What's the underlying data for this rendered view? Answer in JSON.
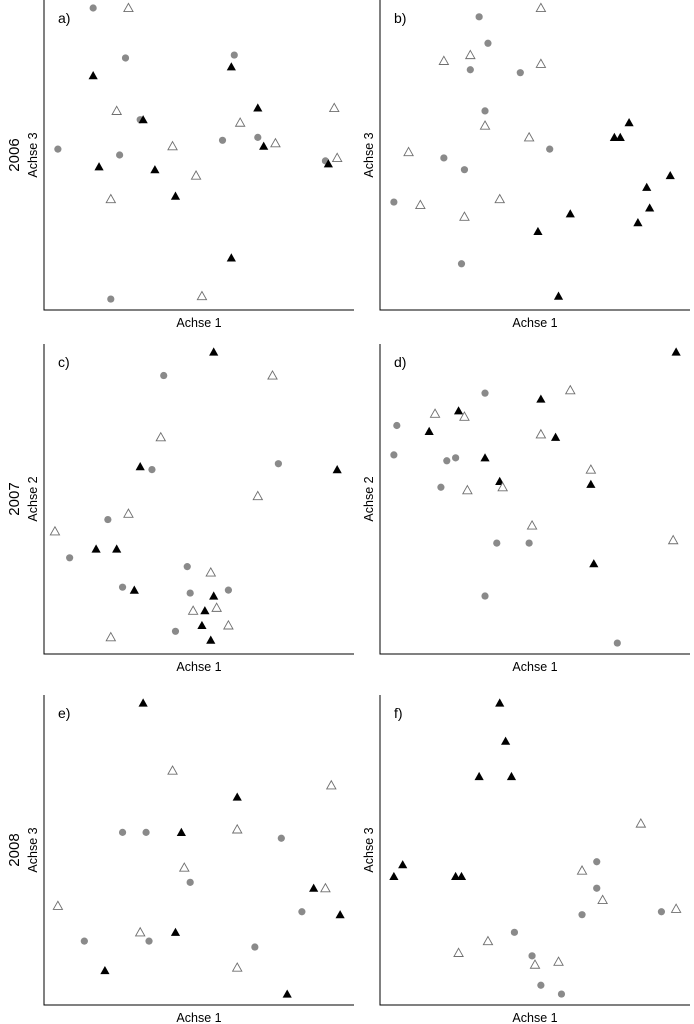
{
  "rows": [
    {
      "label": "2006"
    },
    {
      "label": "2007"
    },
    {
      "label": "2008"
    }
  ],
  "chart_data": [
    {
      "type": "scatter",
      "panel": "a)",
      "xlabel": "Achse 1",
      "ylabel": "Achse 3",
      "xlim": [
        0,
        100
      ],
      "ylim": [
        0,
        100
      ],
      "grid": false,
      "legend": "none",
      "series": [
        {
          "marker": "circle",
          "color": "#8a8a8a",
          "points": [
            [
              2,
              52
            ],
            [
              14,
              100
            ],
            [
              25,
              83
            ],
            [
              30,
              62
            ],
            [
              23,
              50
            ],
            [
              62,
              84
            ],
            [
              58,
              55
            ],
            [
              70,
              56
            ],
            [
              93,
              48
            ],
            [
              20,
              1
            ]
          ]
        },
        {
          "marker": "triangle-filled",
          "color": "#000000",
          "points": [
            [
              14,
              77
            ],
            [
              16,
              46
            ],
            [
              31,
              62
            ],
            [
              35,
              45
            ],
            [
              42,
              36
            ],
            [
              61,
              80
            ],
            [
              61,
              15
            ],
            [
              70,
              66
            ],
            [
              72,
              53
            ],
            [
              94,
              47
            ]
          ]
        },
        {
          "marker": "triangle-open",
          "color": "#6e6e6e",
          "points": [
            [
              26,
              100
            ],
            [
              22,
              65
            ],
            [
              20,
              35
            ],
            [
              41,
              53
            ],
            [
              49,
              43
            ],
            [
              51,
              2
            ],
            [
              64,
              61
            ],
            [
              76,
              54
            ],
            [
              96,
              66
            ],
            [
              97,
              49
            ]
          ]
        }
      ]
    },
    {
      "type": "scatter",
      "panel": "b)",
      "xlabel": "Achse 1",
      "ylabel": "Achse 3",
      "xlim": [
        0,
        100
      ],
      "ylim": [
        0,
        100
      ],
      "grid": false,
      "legend": "none",
      "series": [
        {
          "marker": "circle",
          "color": "#8a8a8a",
          "points": [
            [
              31,
              97
            ],
            [
              34,
              88
            ],
            [
              28,
              79
            ],
            [
              45,
              78
            ],
            [
              33,
              65
            ],
            [
              19,
              49
            ],
            [
              26,
              45
            ],
            [
              2,
              34
            ],
            [
              55,
              52
            ],
            [
              25,
              13
            ]
          ]
        },
        {
          "marker": "triangle-filled",
          "color": "#000000",
          "points": [
            [
              51,
              24
            ],
            [
              62,
              30
            ],
            [
              58,
              2
            ],
            [
              77,
              56
            ],
            [
              79,
              56
            ],
            [
              82,
              61
            ],
            [
              88,
              39
            ],
            [
              89,
              32
            ],
            [
              85,
              27
            ],
            [
              96,
              43
            ]
          ]
        },
        {
          "marker": "triangle-open",
          "color": "#6e6e6e",
          "points": [
            [
              52,
              100
            ],
            [
              52,
              81
            ],
            [
              19,
              82
            ],
            [
              28,
              84
            ],
            [
              33,
              60
            ],
            [
              48,
              56
            ],
            [
              7,
              51
            ],
            [
              11,
              33
            ],
            [
              26,
              29
            ],
            [
              38,
              35
            ]
          ]
        }
      ]
    },
    {
      "type": "scatter",
      "panel": "c)",
      "xlabel": "Achse 1",
      "ylabel": "Achse 2",
      "xlim": [
        0,
        100
      ],
      "ylim": [
        0,
        100
      ],
      "grid": false,
      "legend": "none",
      "series": [
        {
          "marker": "circle",
          "color": "#8a8a8a",
          "points": [
            [
              38,
              92
            ],
            [
              34,
              60
            ],
            [
              77,
              62
            ],
            [
              6,
              30
            ],
            [
              19,
              43
            ],
            [
              24,
              20
            ],
            [
              46,
              27
            ],
            [
              47,
              18
            ],
            [
              60,
              19
            ],
            [
              42,
              5
            ]
          ]
        },
        {
          "marker": "triangle-filled",
          "color": "#000000",
          "points": [
            [
              55,
              100
            ],
            [
              30,
              61
            ],
            [
              97,
              60
            ],
            [
              15,
              33
            ],
            [
              22,
              33
            ],
            [
              28,
              19
            ],
            [
              52,
              12
            ],
            [
              51,
              7
            ],
            [
              55,
              17
            ],
            [
              54,
              2
            ]
          ]
        },
        {
          "marker": "triangle-open",
          "color": "#6e6e6e",
          "points": [
            [
              75,
              92
            ],
            [
              37,
              71
            ],
            [
              70,
              51
            ],
            [
              26,
              45
            ],
            [
              1,
              39
            ],
            [
              54,
              25
            ],
            [
              48,
              12
            ],
            [
              56,
              13
            ],
            [
              60,
              7
            ],
            [
              20,
              3
            ]
          ]
        }
      ]
    },
    {
      "type": "scatter",
      "panel": "d)",
      "xlabel": "Achse 1",
      "ylabel": "Achse 2",
      "xlim": [
        0,
        100
      ],
      "ylim": [
        0,
        100
      ],
      "grid": false,
      "legend": "none",
      "series": [
        {
          "marker": "circle",
          "color": "#8a8a8a",
          "points": [
            [
              3,
              75
            ],
            [
              2,
              65
            ],
            [
              20,
              63
            ],
            [
              23,
              64
            ],
            [
              18,
              54
            ],
            [
              33,
              86
            ],
            [
              37,
              35
            ],
            [
              48,
              35
            ],
            [
              33,
              17
            ],
            [
              78,
              1
            ]
          ]
        },
        {
          "marker": "triangle-filled",
          "color": "#000000",
          "points": [
            [
              24,
              80
            ],
            [
              14,
              73
            ],
            [
              33,
              64
            ],
            [
              38,
              56
            ],
            [
              52,
              84
            ],
            [
              57,
              71
            ],
            [
              69,
              55
            ],
            [
              70,
              28
            ],
            [
              98,
              100
            ]
          ]
        },
        {
          "marker": "triangle-open",
          "color": "#6e6e6e",
          "points": [
            [
              16,
              79
            ],
            [
              26,
              78
            ],
            [
              62,
              87
            ],
            [
              52,
              72
            ],
            [
              69,
              60
            ],
            [
              27,
              53
            ],
            [
              39,
              54
            ],
            [
              49,
              41
            ],
            [
              97,
              36
            ]
          ]
        }
      ]
    },
    {
      "type": "scatter",
      "panel": "e)",
      "xlabel": "Achse 1",
      "ylabel": "Achse 3",
      "xlim": [
        0,
        100
      ],
      "ylim": [
        0,
        100
      ],
      "grid": false,
      "legend": "none",
      "series": [
        {
          "marker": "circle",
          "color": "#8a8a8a",
          "points": [
            [
              24,
              56
            ],
            [
              32,
              56
            ],
            [
              47,
              39
            ],
            [
              78,
              54
            ],
            [
              85,
              29
            ],
            [
              33,
              19
            ],
            [
              11,
              19
            ],
            [
              69,
              17
            ]
          ]
        },
        {
          "marker": "triangle-filled",
          "color": "#000000",
          "points": [
            [
              31,
              100
            ],
            [
              63,
              68
            ],
            [
              44,
              56
            ],
            [
              42,
              22
            ],
            [
              89,
              37
            ],
            [
              98,
              28
            ],
            [
              18,
              9
            ],
            [
              80,
              1
            ]
          ]
        },
        {
          "marker": "triangle-open",
          "color": "#6e6e6e",
          "points": [
            [
              41,
              77
            ],
            [
              63,
              57
            ],
            [
              45,
              44
            ],
            [
              95,
              72
            ],
            [
              93,
              37
            ],
            [
              2,
              31
            ],
            [
              30,
              22
            ],
            [
              63,
              10
            ]
          ]
        }
      ]
    },
    {
      "type": "scatter",
      "panel": "f)",
      "xlabel": "Achse 1",
      "ylabel": "Achse 3",
      "xlim": [
        0,
        100
      ],
      "ylim": [
        0,
        100
      ],
      "grid": false,
      "legend": "none",
      "series": [
        {
          "marker": "circle",
          "color": "#8a8a8a",
          "points": [
            [
              71,
              46
            ],
            [
              71,
              37
            ],
            [
              66,
              28
            ],
            [
              43,
              22
            ],
            [
              49,
              14
            ],
            [
              52,
              4
            ],
            [
              59,
              1
            ],
            [
              93,
              29
            ]
          ]
        },
        {
          "marker": "triangle-filled",
          "color": "#000000",
          "points": [
            [
              38,
              100
            ],
            [
              40,
              87
            ],
            [
              31,
              75
            ],
            [
              42,
              75
            ],
            [
              2,
              41
            ],
            [
              5,
              45
            ],
            [
              23,
              41
            ],
            [
              25,
              41
            ]
          ]
        },
        {
          "marker": "triangle-open",
          "color": "#6e6e6e",
          "points": [
            [
              86,
              59
            ],
            [
              66,
              43
            ],
            [
              73,
              33
            ],
            [
              98,
              30
            ],
            [
              24,
              15
            ],
            [
              34,
              19
            ],
            [
              50,
              11
            ],
            [
              58,
              12
            ]
          ]
        }
      ]
    }
  ]
}
